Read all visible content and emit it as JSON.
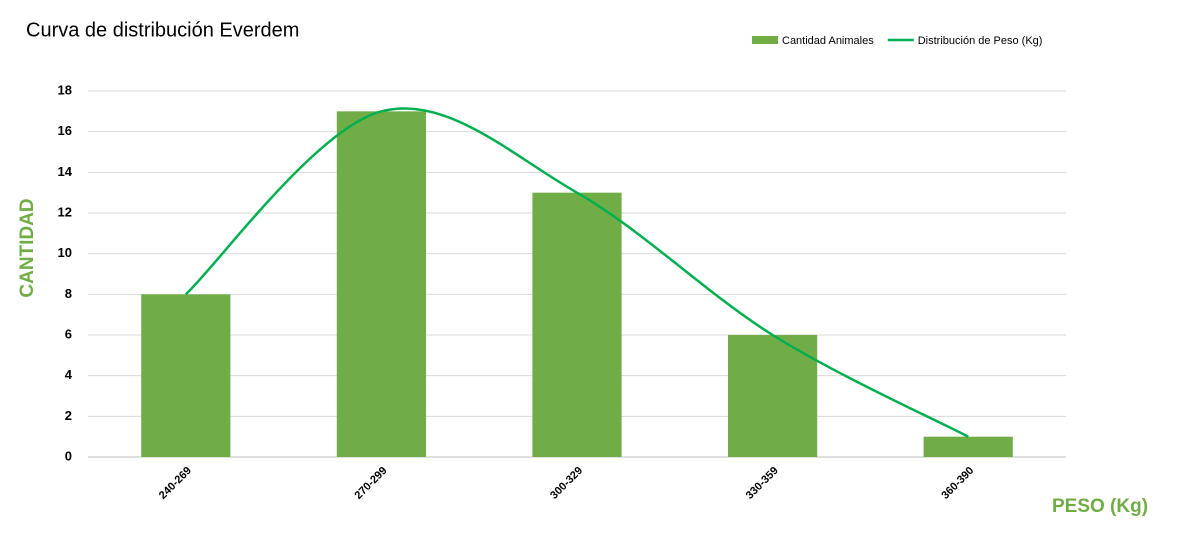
{
  "chart_data": {
    "type": "combo",
    "title": "Curva de distribución Everdem",
    "x_label": "PESO (Kg)",
    "y_label": "CANTIDAD",
    "axis_title_color": "#70ad47",
    "categories": [
      "240-269",
      "270-299",
      "300-329",
      "330-359",
      "360-390"
    ],
    "series": [
      {
        "name": "Cantidad Animales",
        "color": "#70ad47",
        "type": "bar",
        "values": [
          8,
          17,
          13,
          6,
          1
        ]
      },
      {
        "name": "Distribución de Peso (Kg)",
        "color": "#00b050",
        "type": "line",
        "smooth": true,
        "values": [
          8,
          17,
          13,
          6,
          1
        ]
      }
    ],
    "ylim": [
      0,
      18
    ],
    "yticks": [
      0,
      2,
      4,
      6,
      8,
      10,
      12,
      14,
      16,
      18
    ],
    "grid": true,
    "legend": "top-right"
  }
}
